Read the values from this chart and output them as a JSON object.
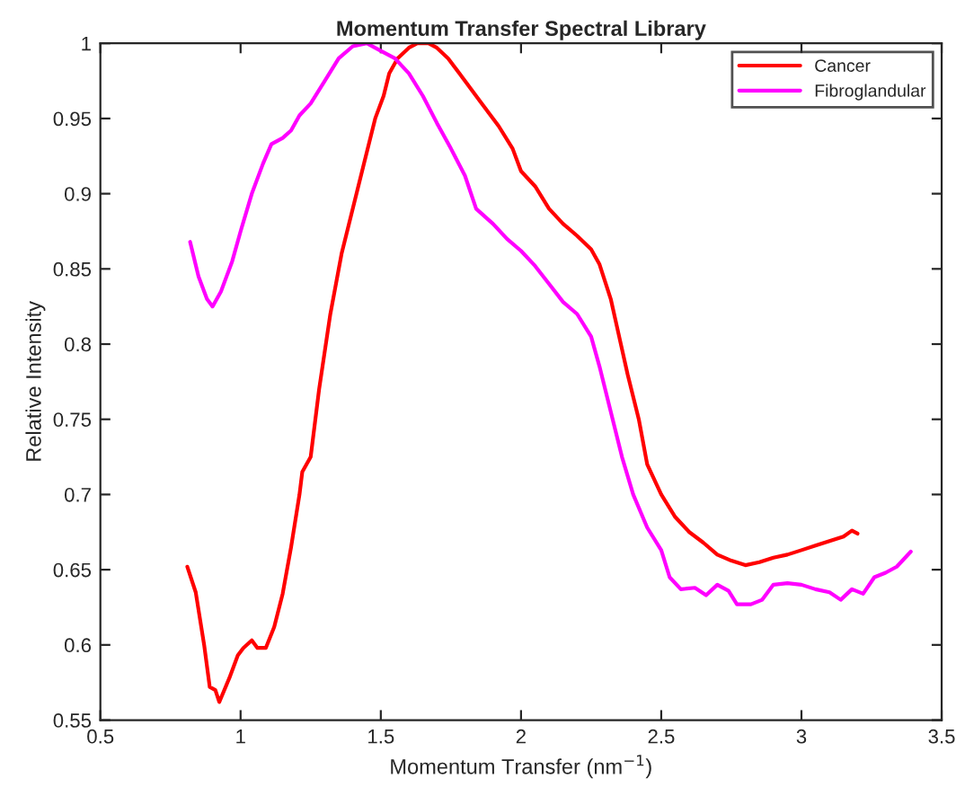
{
  "chart_data": {
    "type": "line",
    "title": "Momentum Transfer Spectral Library",
    "xlabel": "Momentum Transfer (nm$^{−1}$)",
    "ylabel": "Relative Intensity",
    "xlim": [
      0.5,
      3.5
    ],
    "xticks": [
      0.5,
      1,
      1.5,
      2,
      2.5,
      3,
      3.5
    ],
    "ylim": [
      0.55,
      1
    ],
    "yticks": [
      0.55,
      0.6,
      0.65,
      0.7,
      0.75,
      0.8,
      0.85,
      0.9,
      0.95,
      1
    ],
    "grid": false,
    "legend": "top right",
    "marker": "none",
    "line_style": "solid",
    "series": [
      {
        "name": "Cancer",
        "color": "#ff0000",
        "x": [
          0.81,
          0.84,
          0.87,
          0.89,
          0.91,
          0.924,
          0.96,
          0.99,
          1.01,
          1.04,
          1.06,
          1.09,
          1.12,
          1.15,
          1.18,
          1.21,
          1.22,
          1.25,
          1.28,
          1.32,
          1.36,
          1.4,
          1.44,
          1.48,
          1.51,
          1.53,
          1.56,
          1.6,
          1.63,
          1.67,
          1.7,
          1.74,
          1.8,
          1.86,
          1.92,
          1.97,
          2.0,
          2.05,
          2.1,
          2.15,
          2.2,
          2.25,
          2.28,
          2.32,
          2.35,
          2.38,
          2.42,
          2.45,
          2.5,
          2.55,
          2.6,
          2.65,
          2.7,
          2.75,
          2.8,
          2.85,
          2.9,
          2.95,
          3.0,
          3.05,
          3.1,
          3.15,
          3.18,
          3.2
        ],
        "values": [
          0.652,
          0.635,
          0.6,
          0.572,
          0.57,
          0.562,
          0.578,
          0.593,
          0.598,
          0.603,
          0.598,
          0.598,
          0.612,
          0.634,
          0.665,
          0.7,
          0.715,
          0.725,
          0.77,
          0.82,
          0.86,
          0.89,
          0.92,
          0.95,
          0.965,
          0.98,
          0.99,
          0.997,
          1.0,
          1.0,
          0.997,
          0.99,
          0.975,
          0.96,
          0.945,
          0.93,
          0.915,
          0.905,
          0.89,
          0.88,
          0.872,
          0.863,
          0.853,
          0.83,
          0.805,
          0.78,
          0.75,
          0.72,
          0.7,
          0.685,
          0.675,
          0.668,
          0.66,
          0.656,
          0.653,
          0.655,
          0.658,
          0.66,
          0.663,
          0.666,
          0.669,
          0.672,
          0.676,
          0.674
        ]
      },
      {
        "name": "Fibroglandular",
        "color": "#ff00ff",
        "x": [
          0.82,
          0.85,
          0.88,
          0.9,
          0.93,
          0.97,
          1.0,
          1.04,
          1.08,
          1.11,
          1.15,
          1.18,
          1.21,
          1.25,
          1.3,
          1.35,
          1.4,
          1.45,
          1.5,
          1.55,
          1.6,
          1.65,
          1.7,
          1.75,
          1.8,
          1.84,
          1.9,
          1.95,
          2.0,
          2.05,
          2.1,
          2.15,
          2.2,
          2.25,
          2.28,
          2.32,
          2.36,
          2.4,
          2.45,
          2.5,
          2.53,
          2.57,
          2.62,
          2.66,
          2.7,
          2.74,
          2.77,
          2.82,
          2.86,
          2.9,
          2.95,
          3.0,
          3.05,
          3.1,
          3.14,
          3.18,
          3.22,
          3.26,
          3.3,
          3.34,
          3.39
        ],
        "values": [
          0.868,
          0.845,
          0.83,
          0.825,
          0.835,
          0.855,
          0.875,
          0.9,
          0.92,
          0.933,
          0.937,
          0.942,
          0.952,
          0.96,
          0.975,
          0.99,
          0.998,
          1.0,
          0.995,
          0.99,
          0.98,
          0.965,
          0.947,
          0.93,
          0.912,
          0.89,
          0.88,
          0.87,
          0.862,
          0.852,
          0.84,
          0.828,
          0.82,
          0.805,
          0.785,
          0.755,
          0.725,
          0.7,
          0.678,
          0.663,
          0.645,
          0.637,
          0.638,
          0.633,
          0.64,
          0.636,
          0.627,
          0.627,
          0.63,
          0.64,
          0.641,
          0.64,
          0.637,
          0.635,
          0.63,
          0.637,
          0.634,
          0.645,
          0.648,
          0.652,
          0.662
        ]
      }
    ]
  }
}
